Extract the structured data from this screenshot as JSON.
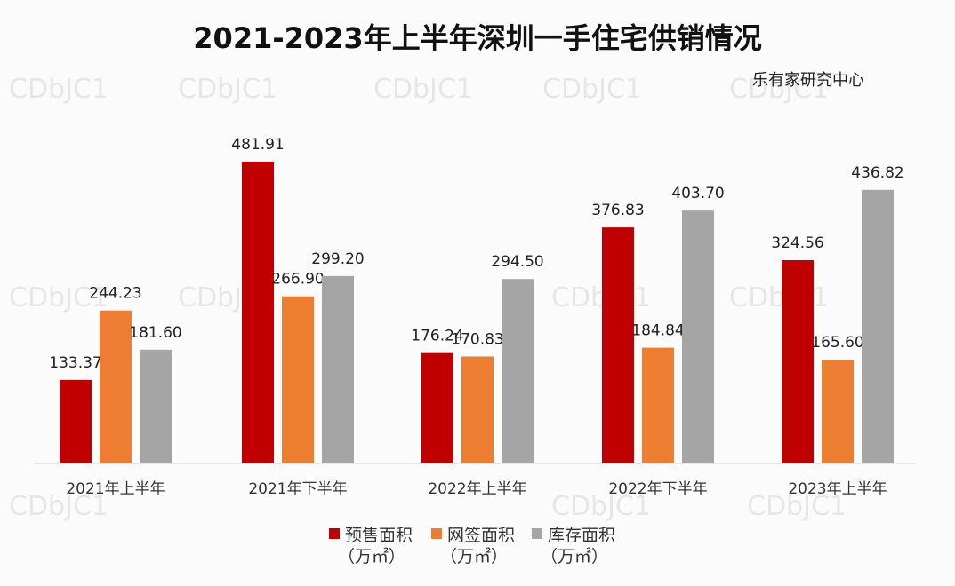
{
  "watermark": "CDbJC1",
  "chart_data": {
    "type": "bar",
    "title": "2021-2023年上半年深圳一手住宅供销情况",
    "source": "乐有家研究中心",
    "categories": [
      "2021年上半年",
      "2021年下半年",
      "2022年上半年",
      "2022年下半年",
      "2023年上半年"
    ],
    "series": [
      {
        "name": "预售面积",
        "unit": "（万㎡）",
        "color": "#c00000",
        "values": [
          133.37,
          481.91,
          176.24,
          376.83,
          324.56
        ]
      },
      {
        "name": "网签面积",
        "unit": "（万㎡）",
        "color": "#ed7d31",
        "values": [
          244.23,
          266.9,
          170.83,
          184.84,
          165.6
        ]
      },
      {
        "name": "库存面积",
        "unit": "（万㎡）",
        "color": "#a5a5a5",
        "values": [
          181.6,
          299.2,
          294.5,
          403.7,
          436.82
        ]
      }
    ],
    "ylim": [
      0,
      481.91
    ],
    "grid": false,
    "legend": "bottom"
  }
}
